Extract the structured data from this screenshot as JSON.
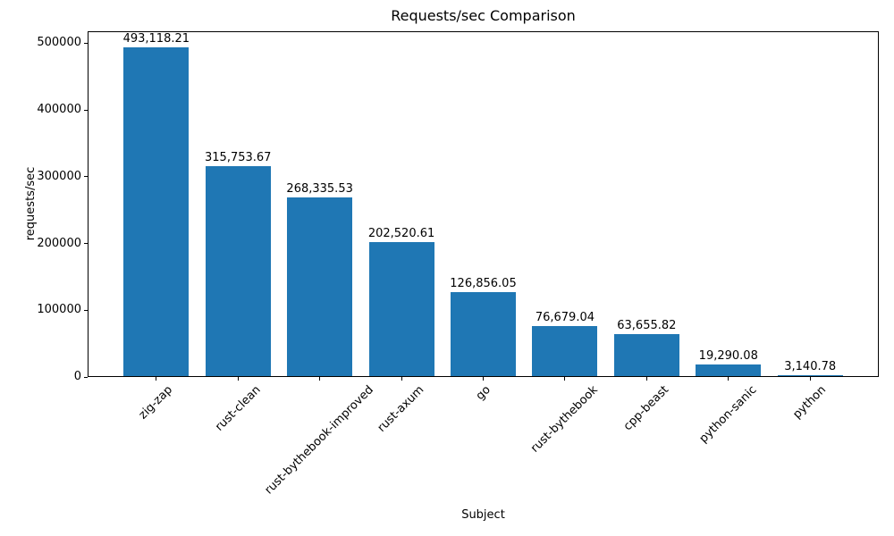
{
  "chart_data": {
    "type": "bar",
    "title": "Requests/sec Comparison",
    "xlabel": "Subject",
    "ylabel": "requests/sec",
    "categories": [
      "zig-zap",
      "rust-clean",
      "rust-bythebook-improved",
      "rust-axum",
      "go",
      "rust-bythebook",
      "cpp-beast",
      "python-sanic",
      "python"
    ],
    "values": [
      493118.21,
      315753.67,
      268335.53,
      202520.61,
      126856.05,
      76679.04,
      63655.82,
      19290.08,
      3140.78
    ],
    "value_labels": [
      "493,118.21",
      "315,753.67",
      "268,335.53",
      "202,520.61",
      "126,856.05",
      "76,679.04",
      "63,655.82",
      "19,290.08",
      "3,140.78"
    ],
    "yticks": [
      0,
      100000,
      200000,
      300000,
      400000,
      500000
    ],
    "ytick_labels": [
      "0",
      "100000",
      "200000",
      "300000",
      "400000",
      "500000"
    ],
    "ylim": [
      0,
      517774
    ],
    "xtick_rotation_deg": 45,
    "bar_color": "#1f77b4",
    "text_color": "#000000",
    "background_color": "#ffffff",
    "grid": false,
    "legend": null,
    "bar_width_fraction": 0.8,
    "x_margin_units": 0.84
  }
}
